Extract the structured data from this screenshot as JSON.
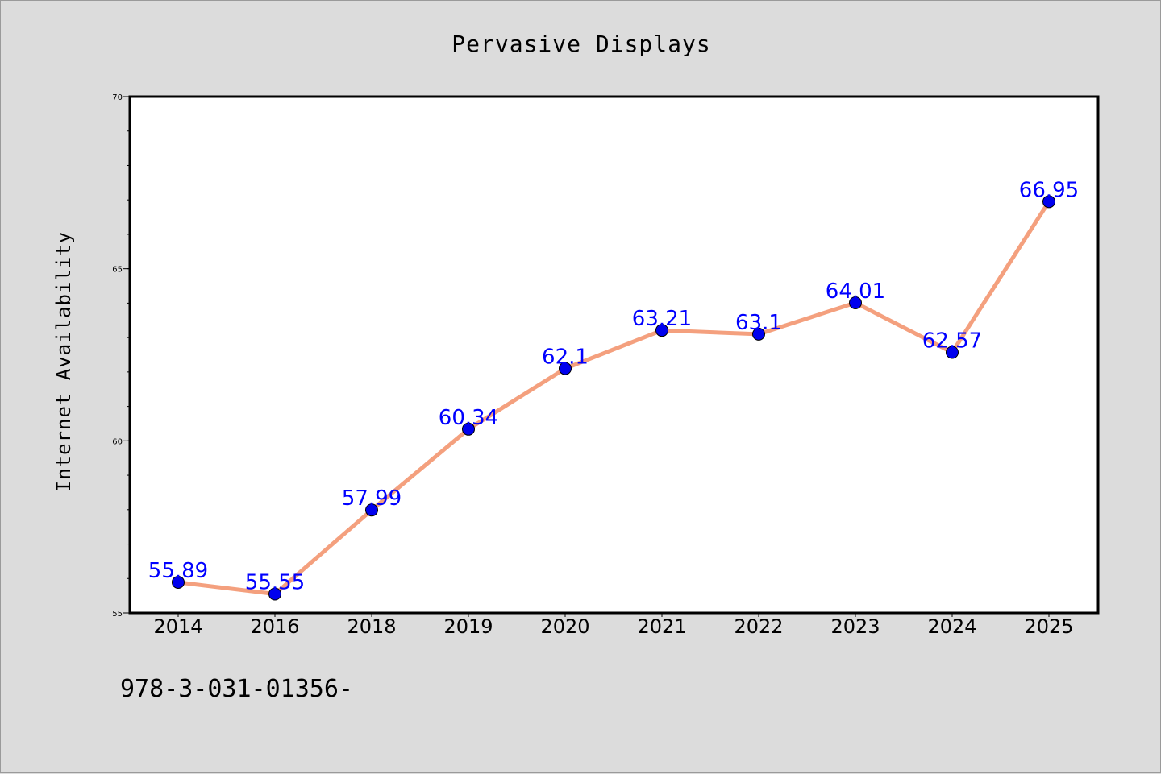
{
  "chart_data": {
    "type": "line",
    "title": "Pervasive Displays",
    "xlabel": "",
    "ylabel": "Internet Availability",
    "categories": [
      "2014",
      "2016",
      "2018",
      "2019",
      "2020",
      "2021",
      "2022",
      "2023",
      "2024",
      "2025"
    ],
    "series": [
      {
        "values": [
          55.89,
          55.55,
          57.99,
          60.34,
          62.1,
          63.21,
          63.1,
          64.01,
          62.57,
          66.95
        ],
        "labels": [
          "55.89",
          "55.55",
          "57.99",
          "60.34",
          "62.1",
          "63.21",
          "63.1",
          "64.01",
          "62.57",
          "66.95"
        ]
      }
    ],
    "ylim": [
      55,
      70
    ],
    "yticks": [
      55,
      60,
      65,
      70
    ],
    "yminor_step": 1,
    "grid": false,
    "colors": {
      "line": "#f4a07e",
      "marker": "#0000ee",
      "label": "#0000ff",
      "plot_bg": "#ffffff",
      "page_bg": "#dcdcdc"
    }
  },
  "footer": {
    "text": "978-3-031-01356-"
  }
}
